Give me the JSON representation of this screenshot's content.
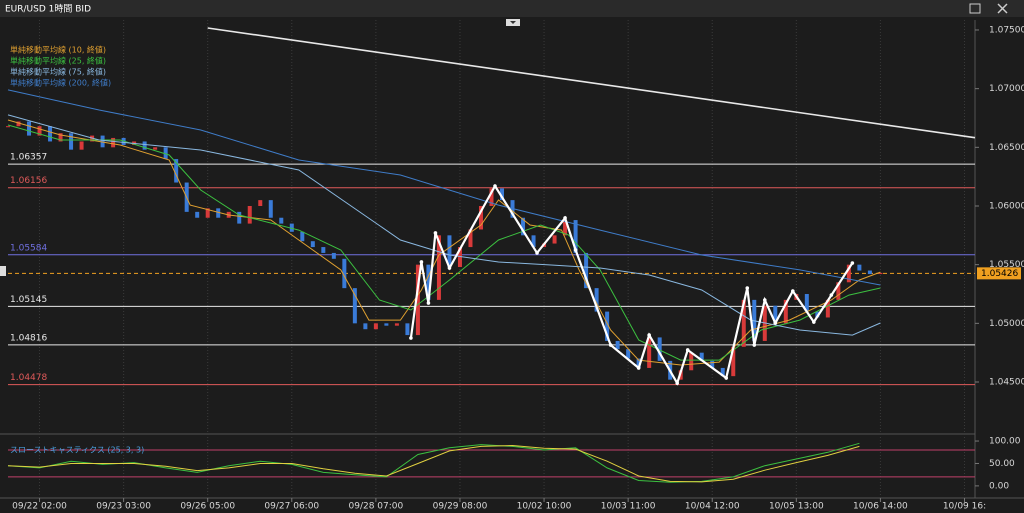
{
  "chart_data": [
    {
      "type": "candlestick",
      "title": "EUR/USD 1時間 BID",
      "xlim": [
        15,
        291
      ],
      "xticks": [
        {
          "value": 24,
          "label": "09/22 02:00"
        },
        {
          "value": 48,
          "label": "09/23 03:00"
        },
        {
          "value": 72,
          "label": "09/26 05:00"
        },
        {
          "value": 96,
          "label": "09/27 06:00"
        },
        {
          "value": 120,
          "label": "09/28 07:00"
        },
        {
          "value": 144,
          "label": "09/29 08:00"
        },
        {
          "value": 168,
          "label": "10/02 10:00"
        },
        {
          "value": 192,
          "label": "10/03 11:00"
        },
        {
          "value": 216,
          "label": "10/04 12:00"
        },
        {
          "value": 240,
          "label": "10/05 13:00"
        },
        {
          "value": 264,
          "label": "10/06 14:00"
        },
        {
          "value": 288,
          "label": "10/09 16:"
        }
      ],
      "ylim": [
        1.04074,
        1.07568
      ],
      "yticks": [
        {
          "value": 1.075,
          "label": "1.07500"
        },
        {
          "value": 1.07,
          "label": "1.07000"
        },
        {
          "value": 1.065,
          "label": "1.06500"
        },
        {
          "value": 1.06,
          "label": "1.06000"
        },
        {
          "value": 1.055,
          "label": "1.05500"
        },
        {
          "value": 1.05,
          "label": "1.05000"
        },
        {
          "value": 1.045,
          "label": "1.04500"
        }
      ],
      "grid": true,
      "up_color": "#d83a3a",
      "down_color": "#3a7bd8",
      "x": [
        15,
        18,
        21,
        24,
        27,
        30,
        33,
        36,
        39,
        42,
        45,
        48,
        51,
        54,
        57,
        60,
        63,
        66,
        69,
        72,
        75,
        78,
        81,
        84,
        87,
        90,
        93,
        96,
        99,
        102,
        105,
        108,
        111,
        114,
        117,
        120,
        123,
        126,
        129,
        132,
        135,
        138,
        141,
        144,
        147,
        150,
        153,
        156,
        159,
        162,
        165,
        168,
        171,
        174,
        177,
        180,
        183,
        186,
        189,
        192,
        195,
        198,
        201,
        204,
        207,
        210,
        213,
        216,
        219,
        222,
        225,
        228,
        231,
        234,
        237,
        240,
        243,
        246,
        249,
        252,
        255,
        258,
        261,
        264
      ],
      "values": [
        1.0668,
        1.0672,
        1.066,
        1.0668,
        1.0655,
        1.0662,
        1.0648,
        1.0655,
        1.066,
        1.065,
        1.0658,
        1.0652,
        1.0655,
        1.0648,
        1.065,
        1.064,
        1.062,
        1.0595,
        1.059,
        1.0598,
        1.059,
        1.0595,
        1.0585,
        1.06,
        1.0605,
        1.059,
        1.0585,
        1.0578,
        1.057,
        1.0565,
        1.056,
        1.0555,
        1.053,
        1.05,
        1.0495,
        1.05,
        1.0498,
        1.05,
        1.049,
        1.055,
        1.052,
        1.0575,
        1.0548,
        1.0565,
        1.058,
        1.06,
        1.0615,
        1.0605,
        1.059,
        1.0575,
        1.0565,
        1.0568,
        1.0575,
        1.0588,
        1.056,
        1.053,
        1.051,
        1.0485,
        1.0478,
        1.047,
        1.0462,
        1.0488,
        1.0468,
        1.0452,
        1.046,
        1.0475,
        1.0468,
        1.0462,
        1.0455,
        1.048,
        1.052,
        1.0485,
        1.0515,
        1.05,
        1.052,
        1.0525,
        1.051,
        1.0505,
        1.052,
        1.0535,
        1.055,
        1.0545,
        1.0542,
        1.0543
      ],
      "series": [
        {
          "name": "単純移動平均線 (10, 終値)",
          "color": "#e0a030",
          "x": [
            15,
            30,
            47,
            61,
            67,
            78,
            90,
            98,
            110,
            118,
            127,
            133,
            138,
            150,
            155,
            164,
            173,
            178,
            187,
            195,
            207,
            218,
            227,
            238,
            250,
            258,
            264
          ],
          "values": [
            1.06733,
            1.06605,
            1.0652,
            1.06392,
            1.06008,
            1.05923,
            1.05881,
            1.0571,
            1.05455,
            1.05028,
            1.05028,
            1.05284,
            1.05582,
            1.05838,
            1.06051,
            1.05838,
            1.05795,
            1.05455,
            1.04943,
            1.04687,
            1.04645,
            1.0467,
            1.04943,
            1.05028,
            1.05199,
            1.05369,
            1.05437
          ]
        },
        {
          "name": "単純移動平均線 (25, 終値)",
          "color": "#3cc040",
          "x": [
            15,
            30,
            47,
            61,
            70,
            81,
            98,
            110,
            121,
            130,
            141,
            155,
            167,
            175,
            184,
            195,
            207,
            218,
            230,
            241,
            255,
            264
          ],
          "values": [
            1.0669,
            1.06562,
            1.06562,
            1.06435,
            1.06136,
            1.05923,
            1.05795,
            1.05625,
            1.05199,
            1.05114,
            1.05369,
            1.0571,
            1.05838,
            1.05753,
            1.05455,
            1.04858,
            1.04687,
            1.04687,
            1.04943,
            1.05028,
            1.05241,
            1.05301
          ]
        },
        {
          "name": "単純移動平均線 (75, 終値)",
          "color": "#8ab8e0",
          "x": [
            15,
            41,
            70,
            98,
            127,
            141,
            155,
            170,
            184,
            198,
            213,
            227,
            241,
            256,
            264
          ],
          "values": [
            1.06776,
            1.06562,
            1.06477,
            1.06307,
            1.0571,
            1.05582,
            1.05523,
            1.05497,
            1.05472,
            1.05412,
            1.05284,
            1.05028,
            1.04943,
            1.049,
            1.05003
          ]
        },
        {
          "name": "単純移動平均線 (200, 終値)",
          "color": "#3f7cc8",
          "x": [
            15,
            41,
            70,
            98,
            127,
            155,
            184,
            213,
            241,
            264
          ],
          "values": [
            1.06989,
            1.06818,
            1.06648,
            1.06392,
            1.06264,
            1.06008,
            1.05795,
            1.05582,
            1.05455,
            1.05327
          ]
        }
      ],
      "zigzag": {
        "color": "#ffffff",
        "x": [
          130,
          133,
          135,
          137,
          141,
          154,
          166,
          174,
          177,
          187,
          195,
          198,
          206,
          209,
          220,
          226,
          228,
          231,
          234,
          239,
          245,
          250,
          256
        ],
        "values": [
          1.04875,
          1.05523,
          1.05173,
          1.0577,
          1.05472,
          1.0617,
          1.056,
          1.05898,
          1.05625,
          1.04815,
          1.04619,
          1.049,
          1.04491,
          1.04773,
          1.04534,
          1.05301,
          1.04815,
          1.05199,
          1.05003,
          1.05275,
          1.05011,
          1.05241,
          1.05514
        ]
      },
      "trendline": {
        "color": "#e8e8e8",
        "x": [
          72,
          291
        ],
        "values": [
          1.07517,
          1.06582
        ]
      },
      "levels": [
        {
          "value": 1.06357,
          "color": "#e8e8e8"
        },
        {
          "value": 1.06156,
          "color": "#e05a5a"
        },
        {
          "value": 1.05584,
          "color": "#7070e0"
        },
        {
          "value": 1.05145,
          "color": "#e8e8e8"
        },
        {
          "value": 1.04816,
          "color": "#e8e8e8"
        },
        {
          "value": 1.04478,
          "color": "#e05a5a"
        }
      ],
      "current": {
        "value": 1.05426,
        "color": "#f0a020"
      }
    },
    {
      "type": "line",
      "title": "スローストキャスティクス (25, 3, 3)",
      "xlim": [
        15,
        291
      ],
      "ylim": [
        -27,
        109
      ],
      "yticks": [
        {
          "value": 100,
          "label": "100.00"
        },
        {
          "value": 50,
          "label": "50.00"
        },
        {
          "value": 0,
          "label": "0.00"
        }
      ],
      "levels": [
        80,
        20
      ],
      "level_color": "#c0406a",
      "x": [
        15,
        24,
        33,
        42,
        51,
        60,
        69,
        78,
        87,
        96,
        105,
        114,
        123,
        132,
        141,
        150,
        159,
        168,
        177,
        186,
        195,
        204,
        213,
        222,
        231,
        240,
        249,
        258
      ],
      "series": [
        {
          "color": "#3cc040",
          "values": [
            45,
            40,
            55,
            48,
            52,
            40,
            30,
            45,
            55,
            48,
            30,
            25,
            20,
            70,
            85,
            92,
            88,
            80,
            85,
            40,
            12,
            8,
            10,
            20,
            45,
            60,
            75,
            95
          ]
        },
        {
          "color": "#e0d040",
          "values": [
            45,
            42,
            50,
            50,
            50,
            44,
            34,
            40,
            50,
            50,
            38,
            28,
            22,
            50,
            78,
            88,
            90,
            84,
            82,
            55,
            22,
            10,
            9,
            15,
            35,
            52,
            68,
            88
          ]
        }
      ]
    }
  ]
}
